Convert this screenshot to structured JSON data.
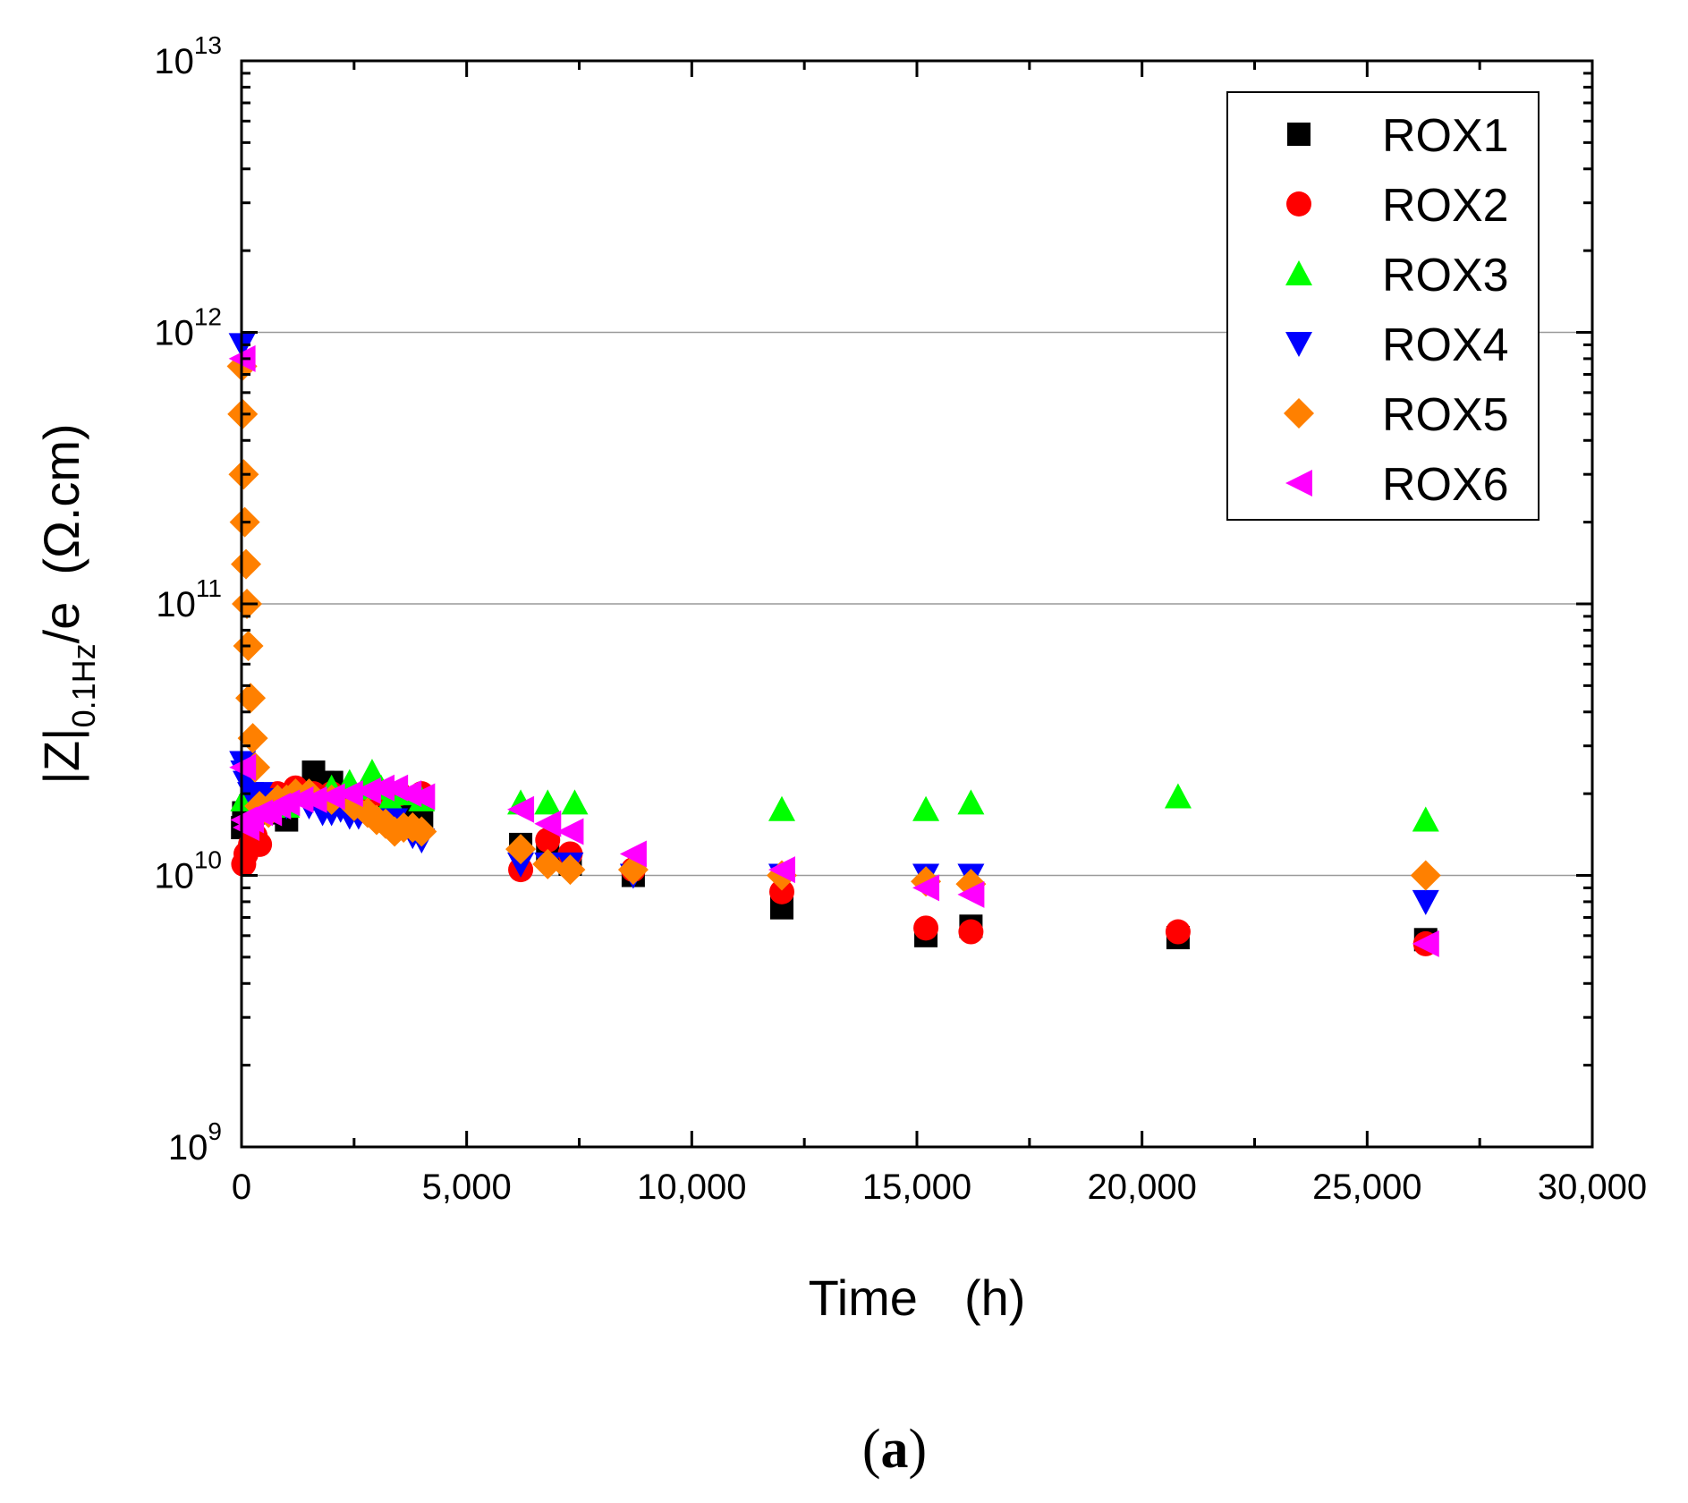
{
  "chart_data": {
    "type": "scatter",
    "panel_label": "a",
    "xlabel": "Time",
    "xunit": "(h)",
    "ylabel_main": "|Z|",
    "ylabel_sub": "0.1Hz",
    "ylabel_tail": "/e",
    "yunit": "(Ω.cm)",
    "y_scale": "log",
    "xlim": [
      0,
      30000
    ],
    "ylim": [
      1000000000,
      10000000000000
    ],
    "x_ticks": [
      {
        "value": 0,
        "label": "0"
      },
      {
        "value": 5000,
        "label": "5,000"
      },
      {
        "value": 10000,
        "label": "10,000"
      },
      {
        "value": 15000,
        "label": "15,000"
      },
      {
        "value": 20000,
        "label": "20,000"
      },
      {
        "value": 25000,
        "label": "25,000"
      },
      {
        "value": 30000,
        "label": "30,000"
      }
    ],
    "y_ticks": [
      {
        "exp": 9,
        "base": "10",
        "sup": "9"
      },
      {
        "exp": 10,
        "base": "10",
        "sup": "10"
      },
      {
        "exp": 11,
        "base": "10",
        "sup": "11"
      },
      {
        "exp": 12,
        "base": "10",
        "sup": "12"
      },
      {
        "exp": 13,
        "base": "10",
        "sup": "13"
      }
    ],
    "grid": "horizontal major",
    "legend_position": "top-right",
    "series": [
      {
        "name": "ROX1",
        "marker": "square",
        "color": "#000000",
        "x": [
          24,
          48,
          100,
          200,
          400,
          600,
          800,
          1000,
          1300,
          1600,
          1800,
          2000,
          2200,
          2500,
          2800,
          3000,
          3300,
          3600,
          4000,
          6200,
          6800,
          7300,
          8700,
          12000,
          15200,
          16200,
          20800,
          26300
        ],
        "y": [
          15000000000.0,
          17000000000.0,
          16000000000.0,
          18000000000.0,
          18000000000.0,
          17000000000.0,
          17000000000.0,
          16000000000.0,
          20000000000.0,
          24000000000.0,
          22000000000.0,
          22000000000.0,
          20000000000.0,
          19000000000.0,
          18000000000.0,
          18000000000.0,
          17000000000.0,
          17000000000.0,
          16000000000.0,
          13000000000.0,
          12000000000.0,
          11000000000.0,
          10000000000.0,
          7600000000.0,
          6000000000.0,
          6500000000.0,
          5900000000.0,
          5800000000.0
        ]
      },
      {
        "name": "ROX2",
        "marker": "circle",
        "color": "#ff0000",
        "x": [
          48,
          100,
          200,
          300,
          400,
          800,
          1200,
          1600,
          2000,
          2500,
          3000,
          3500,
          4000,
          6200,
          6800,
          7300,
          8700,
          12000,
          15200,
          16200,
          20800,
          26300
        ],
        "y": [
          11000000000.0,
          12000000000.0,
          13000000000.0,
          14000000000.0,
          13000000000.0,
          20000000000.0,
          21000000000.0,
          20000000000.0,
          20000000000.0,
          19000000000.0,
          20000000000.0,
          20000000000.0,
          20000000000.0,
          10500000000.0,
          13500000000.0,
          12000000000.0,
          10500000000.0,
          8700000000.0,
          6400000000.0,
          6200000000.0,
          6200000000.0,
          5600000000.0
        ]
      },
      {
        "name": "ROX3",
        "marker": "triangle-up",
        "color": "#00ff00",
        "x": [
          48,
          200,
          400,
          800,
          1000,
          1200,
          1500,
          2000,
          2400,
          2800,
          2900,
          3100,
          3300,
          3600,
          4000,
          6200,
          6800,
          7400,
          12000,
          15200,
          16200,
          20800,
          26300
        ],
        "y": [
          19000000000.0,
          21000000000.0,
          19000000000.0,
          18000000000.0,
          18000000000.0,
          20000000000.0,
          20000000000.0,
          21000000000.0,
          22000000000.0,
          21000000000.0,
          24000000000.0,
          21000000000.0,
          19000000000.0,
          20000000000.0,
          19000000000.0,
          18500000000.0,
          18500000000.0,
          18500000000.0,
          17500000000.0,
          17500000000.0,
          18500000000.0,
          19500000000.0,
          16000000000.0
        ]
      },
      {
        "name": "ROX4",
        "marker": "triangle-down",
        "color": "#0000ff",
        "x": [
          12,
          24,
          48,
          100,
          200,
          400,
          600,
          1000,
          1500,
          1800,
          2000,
          2200,
          2400,
          2600,
          3000,
          3400,
          3800,
          4000,
          6200,
          6800,
          7300,
          8700,
          12000,
          15200,
          16200,
          26300
        ],
        "y": [
          900000000000.0,
          26000000000.0,
          24000000000.0,
          22000000000.0,
          20000000000.0,
          20000000000.0,
          19000000000.0,
          18000000000.0,
          18000000000.0,
          17000000000.0,
          17000000000.0,
          17500000000.0,
          16500000000.0,
          16500000000.0,
          16000000000.0,
          16000000000.0,
          14000000000.0,
          13500000000.0,
          11000000000.0,
          11000000000.0,
          11000000000.0,
          10000000000.0,
          10000000000.0,
          10000000000.0,
          10000000000.0,
          8000000000.0
        ]
      },
      {
        "name": "ROX5",
        "marker": "diamond",
        "color": "#ff8000",
        "x": [
          12,
          24,
          48,
          72,
          100,
          120,
          150,
          200,
          250,
          300,
          400,
          600,
          800,
          1000,
          1200,
          1500,
          2000,
          2500,
          2800,
          3000,
          3200,
          3400,
          3600,
          3800,
          4000,
          6200,
          6800,
          7300,
          8700,
          12000,
          15200,
          16200,
          26300
        ],
        "y": [
          750000000000.0,
          500000000000.0,
          300000000000.0,
          200000000000.0,
          140000000000.0,
          100000000000.0,
          70000000000.0,
          45000000000.0,
          32000000000.0,
          25000000000.0,
          18000000000.0,
          17000000000.0,
          19000000000.0,
          19000000000.0,
          20000000000.0,
          20000000000.0,
          19000000000.0,
          18000000000.0,
          17000000000.0,
          16000000000.0,
          15500000000.0,
          14500000000.0,
          15000000000.0,
          15000000000.0,
          14500000000.0,
          12500000000.0,
          11000000000.0,
          10500000000.0,
          10500000000.0,
          10000000000.0,
          9500000000.0,
          9300000000.0,
          10000000000.0
        ]
      },
      {
        "name": "ROX6",
        "marker": "triangle-left",
        "color": "#ff00ff",
        "x": [
          12,
          24,
          48,
          100,
          200,
          400,
          600,
          800,
          1000,
          1300,
          1600,
          2000,
          2400,
          2800,
          3100,
          3400,
          3700,
          4000,
          6200,
          6800,
          7300,
          8700,
          12000,
          15200,
          16200,
          26300
        ],
        "y": [
          800000000000.0,
          25000000000.0,
          16000000000.0,
          15000000000.0,
          16000000000.0,
          17000000000.0,
          17000000000.0,
          18000000000.0,
          18500000000.0,
          19000000000.0,
          19000000000.0,
          19500000000.0,
          20000000000.0,
          20500000000.0,
          21000000000.0,
          21000000000.0,
          20000000000.0,
          19500000000.0,
          17500000000.0,
          15500000000.0,
          14500000000.0,
          12000000000.0,
          10500000000.0,
          9000000000.0,
          8500000000.0,
          5600000000.0
        ]
      }
    ]
  }
}
